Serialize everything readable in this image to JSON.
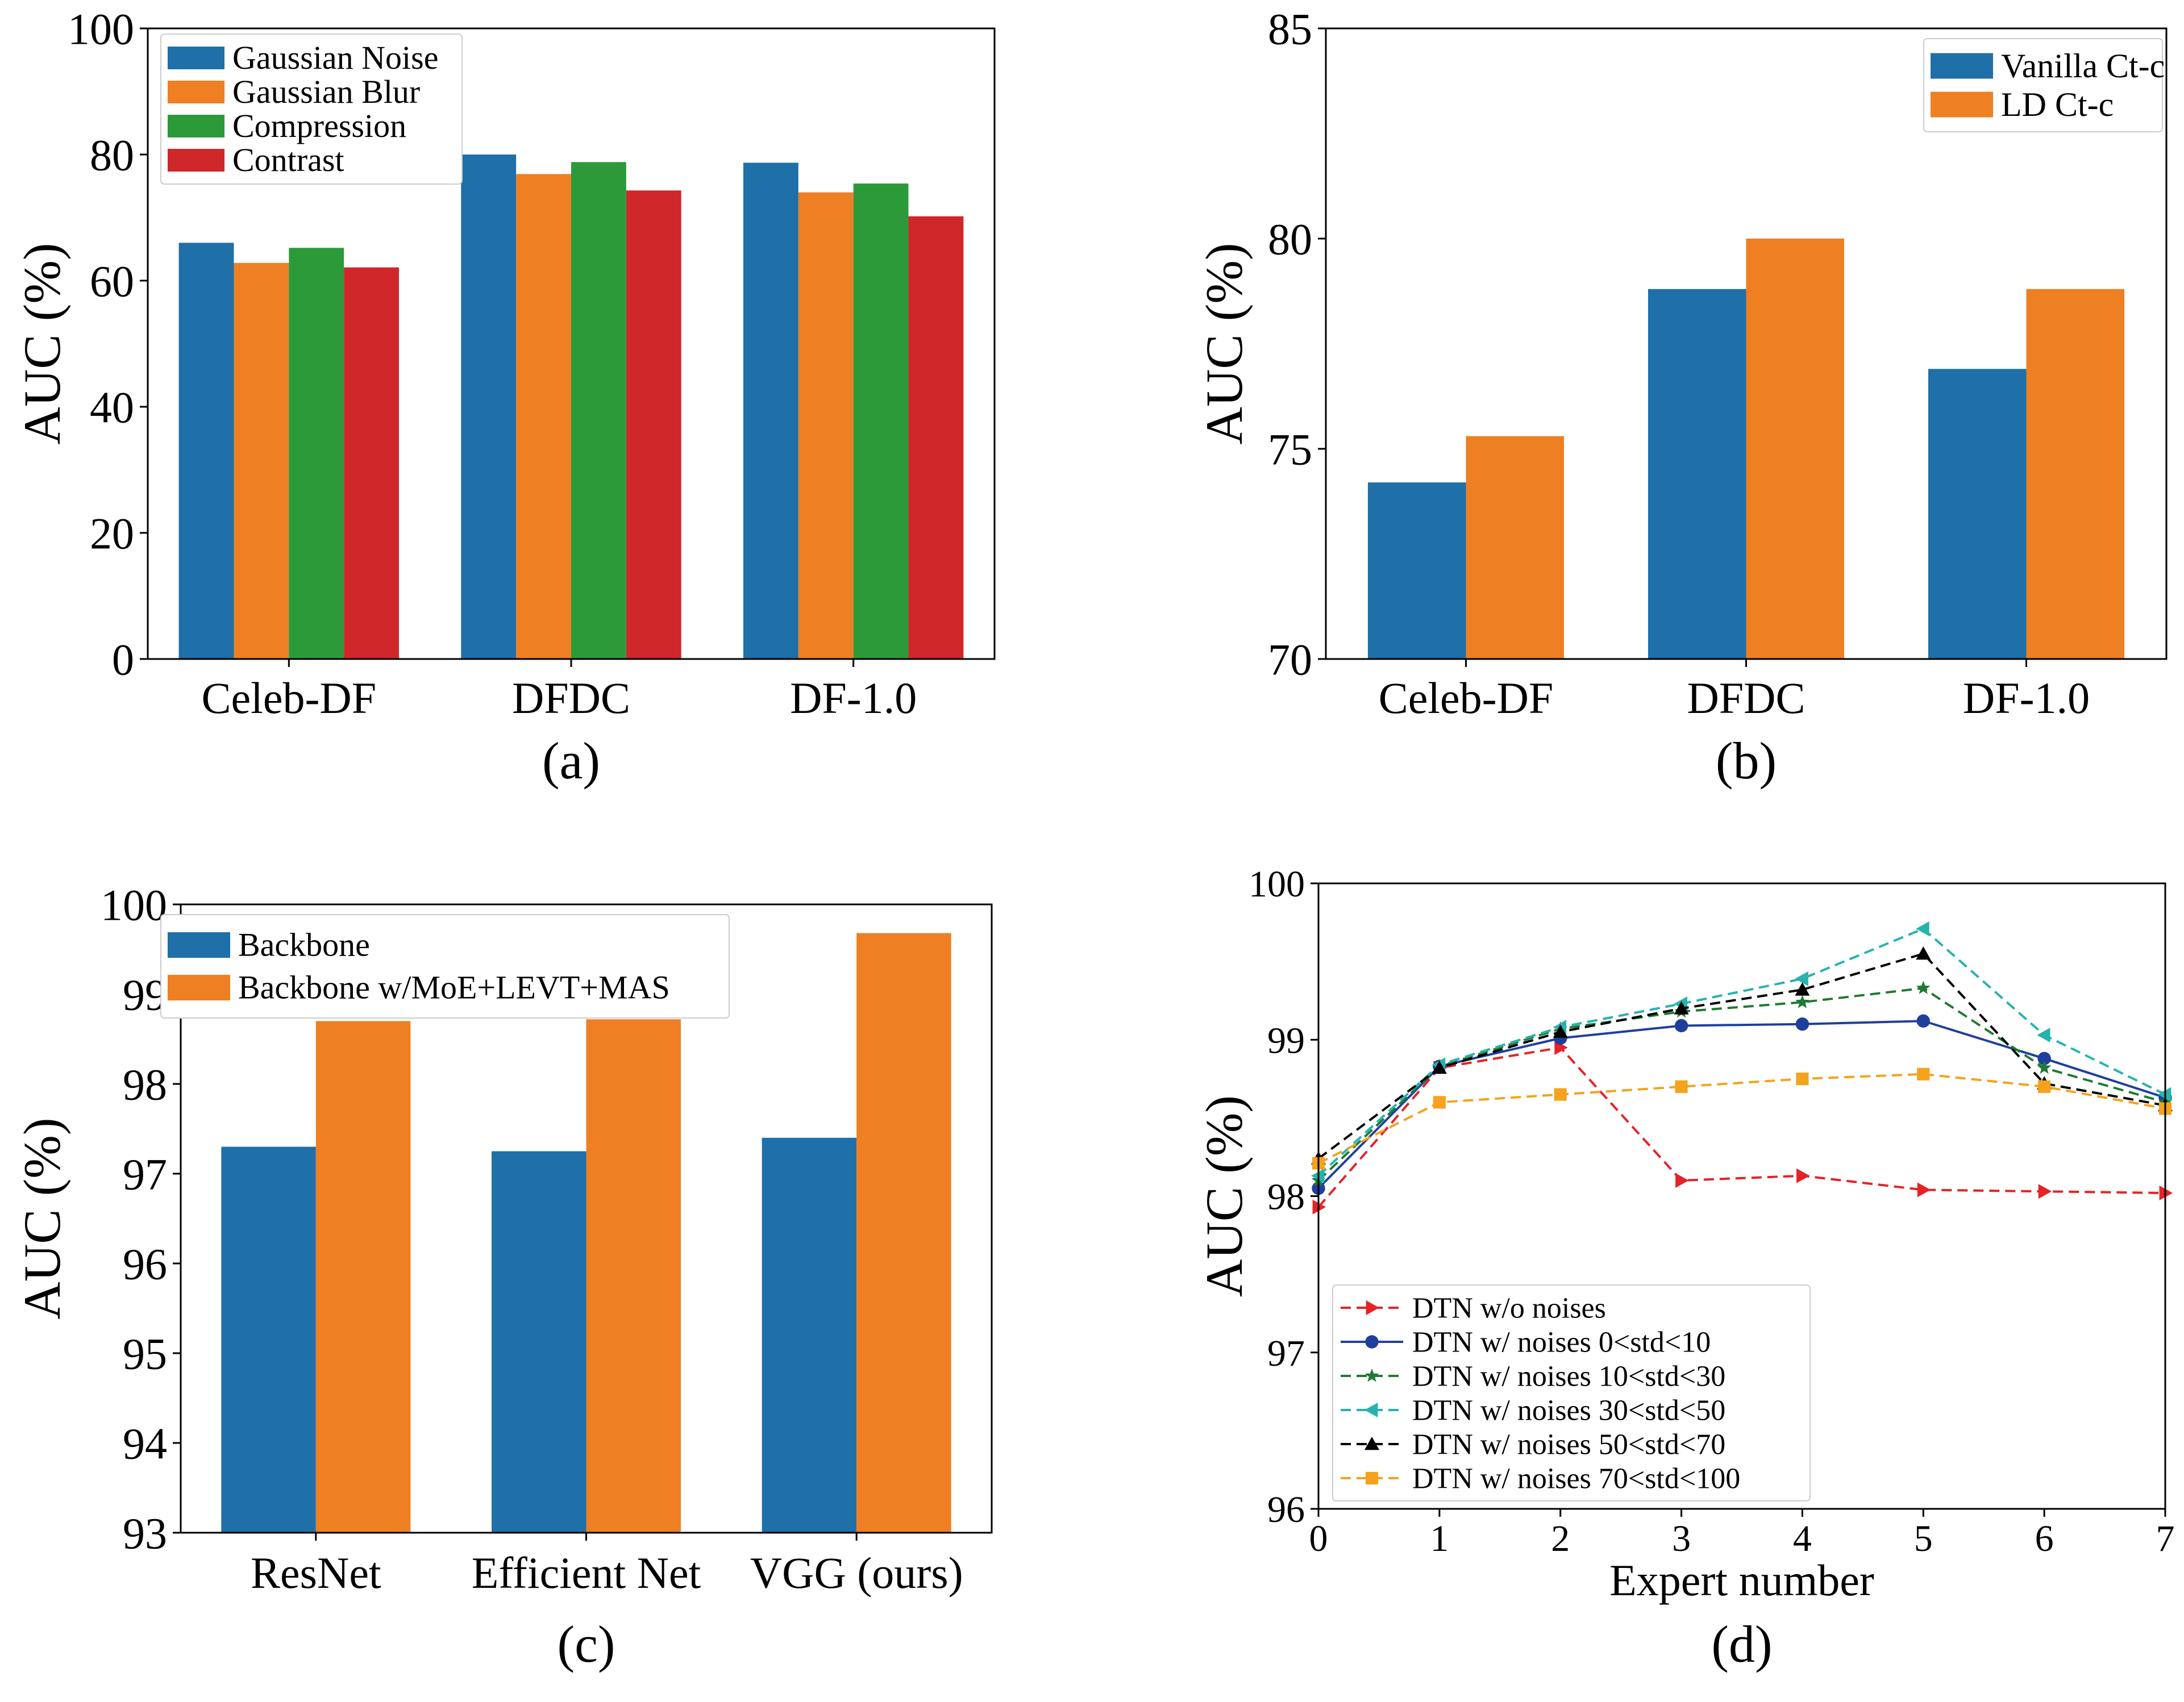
{
  "chart_data": [
    {
      "type": "bar",
      "caption": "(a)",
      "ylabel": "AUC (%)",
      "xlabel": "",
      "ylim": [
        0,
        100
      ],
      "yticks": [
        "0",
        "20",
        "40",
        "60",
        "80",
        "100"
      ],
      "categories": [
        "Celeb-DF",
        "DFDC",
        "DF-1.0"
      ],
      "legend_position": "top-left",
      "series": [
        {
          "name": "Gaussian Noise",
          "values": [
            66.0,
            80.0,
            78.7
          ]
        },
        {
          "name": "Gaussian Blur",
          "values": [
            62.8,
            76.9,
            74.0
          ]
        },
        {
          "name": "Compression",
          "values": [
            65.2,
            78.8,
            75.4
          ]
        },
        {
          "name": "Contrast",
          "values": [
            62.1,
            74.3,
            70.2
          ]
        }
      ]
    },
    {
      "type": "bar",
      "caption": "(b)",
      "ylabel": "AUC (%)",
      "xlabel": "",
      "ylim": [
        70,
        85
      ],
      "yticks": [
        "70",
        "75",
        "80",
        "85"
      ],
      "categories": [
        "Celeb-DF",
        "DFDC",
        "DF-1.0"
      ],
      "legend_position": "top-right",
      "series": [
        {
          "name": "Vanilla Ct-c",
          "values": [
            74.2,
            78.8,
            76.9
          ]
        },
        {
          "name": "LD Ct-c",
          "values": [
            75.3,
            80.0,
            78.8
          ]
        }
      ]
    },
    {
      "type": "bar",
      "caption": "(c)",
      "ylabel": "AUC (%)",
      "xlabel": "",
      "ylim": [
        93,
        100
      ],
      "yticks": [
        "93",
        "94",
        "95",
        "96",
        "97",
        "98",
        "99",
        "100"
      ],
      "categories": [
        "ResNet",
        "Efficient Net",
        "VGG (ours)"
      ],
      "legend_position": "top-left",
      "series": [
        {
          "name": "Backbone",
          "values": [
            97.3,
            97.25,
            97.4
          ]
        },
        {
          "name": "Backbone w/MoE+LEVT+MAS",
          "values": [
            98.7,
            98.72,
            99.68
          ]
        }
      ]
    },
    {
      "type": "line",
      "caption": "(d)",
      "ylabel": "AUC (%)",
      "xlabel": "Expert number",
      "xlim": [
        0,
        7
      ],
      "ylim": [
        96,
        100
      ],
      "xticks": [
        "0",
        "1",
        "2",
        "3",
        "4",
        "5",
        "6",
        "7"
      ],
      "yticks": [
        "96",
        "97",
        "98",
        "99",
        "100"
      ],
      "x": [
        0,
        1,
        2,
        3,
        4,
        5,
        6,
        7
      ],
      "legend_position": "lower-left",
      "series": [
        {
          "name": "DTN w/o noises",
          "values": [
            97.93,
            98.82,
            98.95,
            98.1,
            98.13,
            98.04,
            98.03,
            98.02
          ]
        },
        {
          "name": "DTN w/ noises 0<std<10",
          "values": [
            98.05,
            98.83,
            99.01,
            99.09,
            99.1,
            99.12,
            98.88,
            98.63
          ]
        },
        {
          "name": "DTN w/ noises 10<std<30",
          "values": [
            98.1,
            98.83,
            99.07,
            99.18,
            99.24,
            99.33,
            98.82,
            98.6
          ]
        },
        {
          "name": "DTN w/ noises 30<std<50",
          "values": [
            98.13,
            98.84,
            99.08,
            99.23,
            99.39,
            99.71,
            99.03,
            98.65
          ]
        },
        {
          "name": "DTN w/ noises 50<std<70",
          "values": [
            98.24,
            98.82,
            99.05,
            99.2,
            99.32,
            99.55,
            98.72,
            98.58
          ]
        },
        {
          "name": "DTN w/ noises 70<std<100",
          "values": [
            98.21,
            98.6,
            98.65,
            98.7,
            98.75,
            98.78,
            98.7,
            98.56
          ]
        }
      ]
    }
  ]
}
